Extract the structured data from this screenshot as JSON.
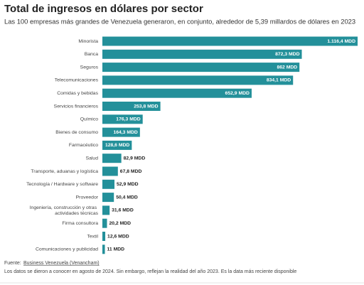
{
  "chart_data": {
    "type": "bar",
    "orientation": "horizontal",
    "title": "Total de ingresos en dólares por sector",
    "subtitle": "Las 100 empresas más grandes de Venezuela generaron, en conjunto, alrededor de 5,39 millardos de dólares en 2023",
    "categories": [
      "Minorista",
      "Banca",
      "Seguros",
      "Telecomunicaciones",
      "Comidas y bebidas",
      "Servicios financieros",
      "Químico",
      "Bienes de consumo",
      "Farmacéutico",
      "Salud",
      "Transporte, aduanas y logística",
      "Tecnología / Hardware y software",
      "Proveedor",
      "Ingeniería, construcción y otras actividades técnicas",
      "Firma consultora",
      "Textil",
      "Comunicaciones y publicidad"
    ],
    "values": [
      1116.4,
      872.3,
      862,
      834.1,
      652.9,
      253.8,
      176.3,
      164.3,
      128.6,
      82.9,
      67.8,
      52.9,
      50.4,
      31.6,
      20.2,
      12.6,
      11
    ],
    "value_labels": [
      "1.116,4 MDD",
      "872,3 MDD",
      "862 MDD",
      "834,1 MDD",
      "652,9 MDD",
      "253,8 MDD",
      "176,3 MDD",
      "164,3 MDD",
      "128,6 MDD",
      "82,9 MDD",
      "67,8 MDD",
      "52,9 MDD",
      "50,4 MDD",
      "31,6 MDD",
      "20,2 MDD",
      "12,6 MDD",
      "11 MDD"
    ],
    "color": "#23909a",
    "source_label": "Fuente:",
    "source": "Business Venezuela (Venancham)",
    "note": "Los datos se dieron a conocer en agosto de 2024. Sin embargo, reflejan la realidad del año 2023. Es la data más reciente disponible"
  }
}
